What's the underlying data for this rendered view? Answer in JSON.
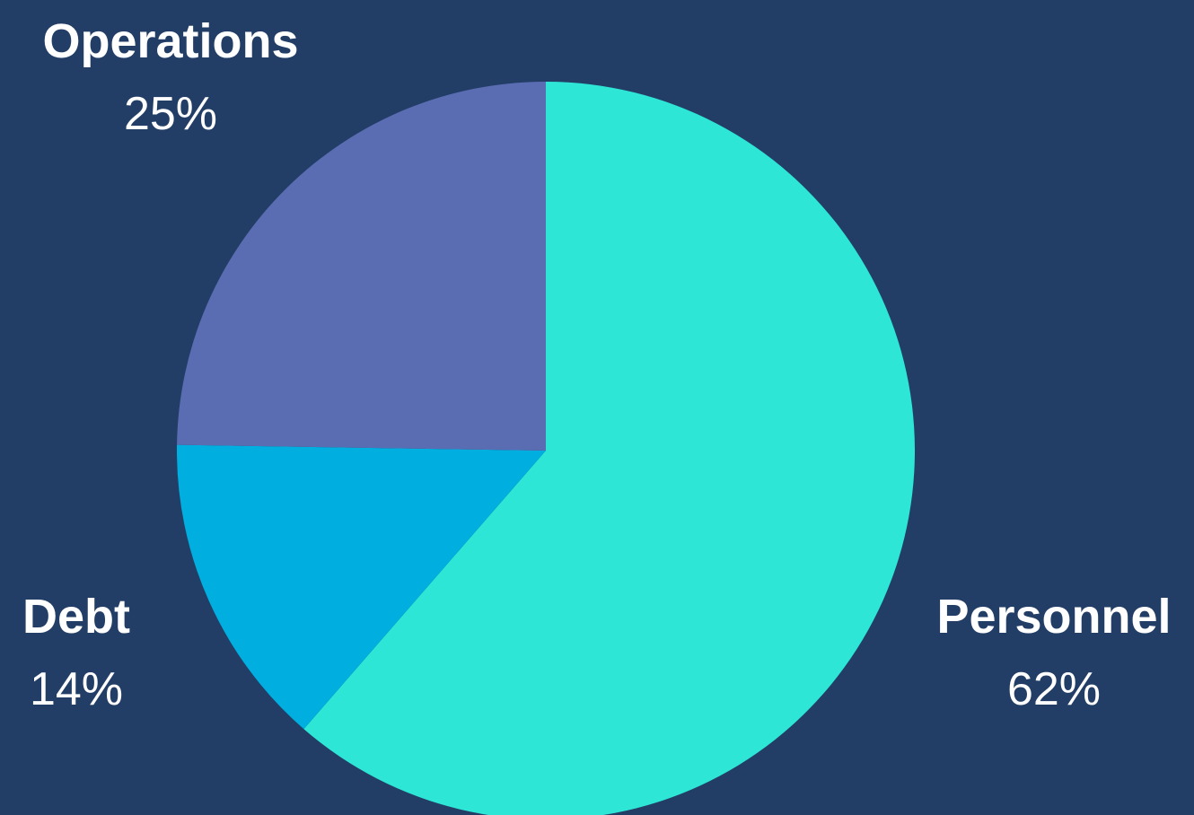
{
  "chart_data": {
    "type": "pie",
    "slices": [
      {
        "label": "Personnel",
        "value": 62,
        "value_label": "62%",
        "color": "#2ee6d6"
      },
      {
        "label": "Debt",
        "value": 14,
        "value_label": "14%",
        "color": "#00aee0"
      },
      {
        "label": "Operations",
        "value": 25,
        "value_label": "25%",
        "color": "#5a6db3"
      }
    ],
    "start_angle_deg": 0,
    "direction": "clockwise",
    "background": "#223e66",
    "label_color": "#ffffff"
  }
}
